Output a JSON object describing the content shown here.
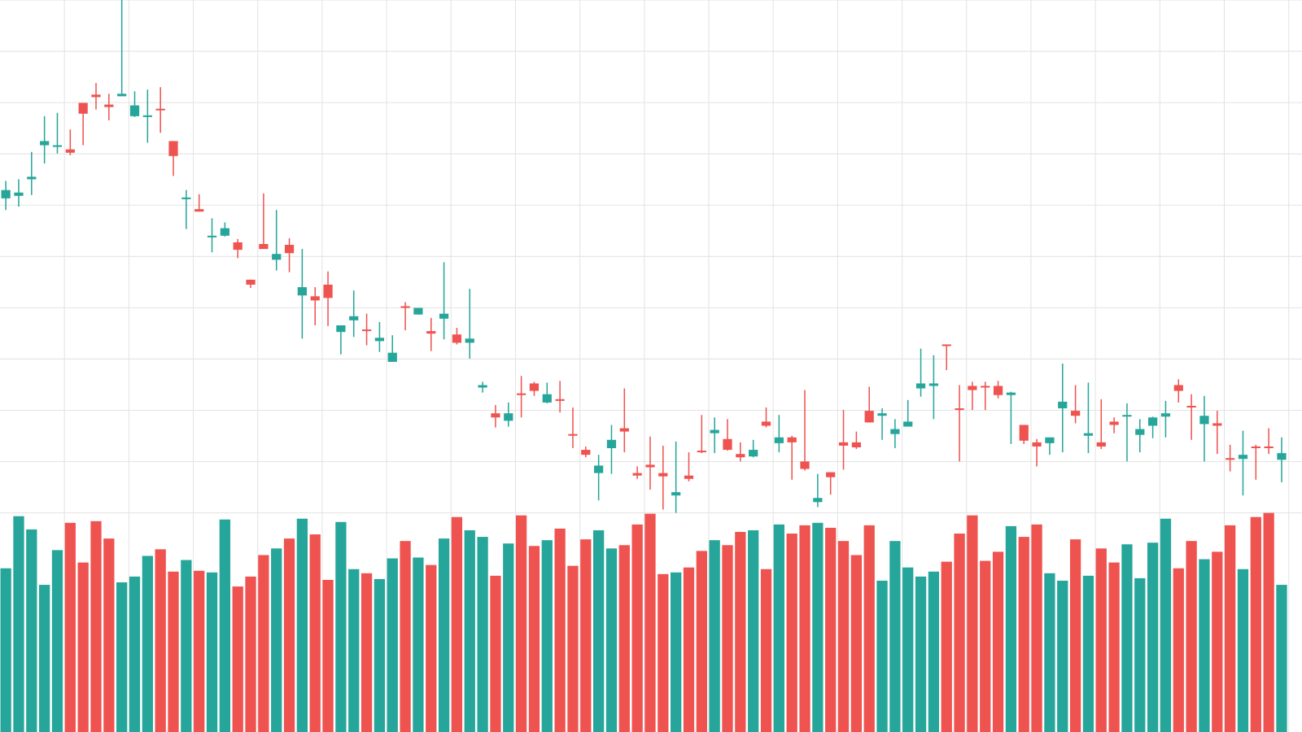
{
  "chart_data": {
    "type": "candlestick",
    "up_color": "#26a69a",
    "down_color": "#ef5350",
    "grid": true,
    "ylim": [
      0,
      618
    ],
    "yticks": [
      0,
      61.8,
      123.6,
      185.4,
      247.2,
      309,
      370.8,
      432.6,
      494.4,
      556.2,
      618
    ],
    "volume_lim": [
      0,
      265
    ],
    "open": [
      379,
      382,
      402,
      443,
      441,
      438,
      494,
      504,
      492,
      502,
      478,
      477,
      487,
      448,
      378,
      366,
      332,
      334,
      326,
      281,
      324,
      305,
      323,
      262,
      261,
      275,
      218,
      232,
      221,
      207,
      182,
      249,
      239,
      219,
      234,
      215,
      205,
      151,
      120,
      111,
      144,
      156,
      133,
      137,
      95,
      76,
      48,
      78,
      102,
      48,
      58,
      48,
      21,
      45,
      75,
      96,
      89,
      71,
      68,
      110,
      84,
      91,
      62,
      13,
      49,
      85,
      85,
      123,
      117,
      95,
      104,
      150,
      153,
      203,
      126,
      153,
      153,
      153,
      142,
      106,
      85,
      84,
      126,
      123,
      93,
      85,
      110,
      116,
      94,
      105,
      116,
      154,
      129,
      107,
      108,
      66,
      65,
      80,
      80,
      64
    ],
    "high": [
      400,
      402,
      435,
      478,
      482,
      462,
      494,
      518,
      505,
      618,
      508,
      510,
      513,
      448,
      389,
      384,
      355,
      350,
      330,
      281,
      385,
      365,
      331,
      318,
      272,
      291,
      226,
      268,
      240,
      230,
      214,
      254,
      247,
      235,
      302,
      223,
      270,
      158,
      130,
      133,
      165,
      158,
      157,
      159,
      127,
      80,
      70,
      106,
      150,
      56,
      92,
      81,
      86,
      73,
      118,
      115,
      113,
      85,
      88,
      127,
      118,
      93,
      148,
      47,
      49,
      124,
      98,
      152,
      126,
      113,
      136,
      198,
      190,
      203,
      154,
      158,
      158,
      159,
      146,
      106,
      89,
      91,
      180,
      154,
      157,
      137,
      115,
      132,
      113,
      116,
      135,
      161,
      143,
      141,
      123,
      82,
      99,
      82,
      102,
      91
    ],
    "low": [
      365,
      369,
      383,
      421,
      433,
      431,
      443,
      486,
      473,
      502,
      477,
      446,
      458,
      406,
      342,
      363,
      314,
      333,
      307,
      271,
      318,
      292,
      290,
      210,
      226,
      225,
      191,
      212,
      202,
      194,
      182,
      220,
      239,
      195,
      209,
      203,
      186,
      145,
      103,
      104,
      115,
      141,
      132,
      121,
      78,
      67,
      15,
      47,
      73,
      41,
      28,
      4,
      0,
      38,
      72,
      72,
      75,
      62,
      67,
      103,
      73,
      40,
      51,
      7,
      22,
      52,
      77,
      109,
      88,
      78,
      104,
      140,
      113,
      172,
      62,
      124,
      124,
      138,
      83,
      83,
      56,
      70,
      73,
      108,
      72,
      77,
      96,
      62,
      73,
      90,
      91,
      133,
      88,
      62,
      71,
      50,
      21,
      40,
      71,
      37
    ],
    "close": [
      389,
      386,
      405,
      448,
      443,
      434,
      481,
      501,
      489,
      505,
      491,
      479,
      485,
      430,
      380,
      363,
      334,
      343,
      317,
      275,
      318,
      312,
      313,
      272,
      256,
      259,
      226,
      237,
      219,
      211,
      193,
      247,
      247,
      216,
      240,
      205,
      210,
      154,
      115,
      120,
      142,
      147,
      143,
      135,
      93,
      70,
      57,
      88,
      98,
      45,
      55,
      44,
      25,
      41,
      73,
      100,
      76,
      67,
      76,
      105,
      91,
      85,
      53,
      18,
      43,
      81,
      79,
      109,
      120,
      101,
      110,
      156,
      156,
      201,
      124,
      148,
      151,
      142,
      145,
      87,
      80,
      91,
      134,
      117,
      96,
      80,
      106,
      118,
      101,
      115,
      120,
      147,
      127,
      117,
      105,
      64,
      70,
      78,
      78,
      72
    ],
    "volume": [
      198,
      261,
      245,
      178,
      220,
      253,
      205,
      255,
      234,
      181,
      188,
      213,
      221,
      194,
      208,
      195,
      193,
      257,
      176,
      188,
      214,
      222,
      234,
      258,
      239,
      184,
      254,
      197,
      192,
      185,
      210,
      231,
      211,
      202,
      234,
      260,
      244,
      236,
      189,
      228,
      262,
      225,
      232,
      246,
      201,
      233,
      244,
      222,
      226,
      251,
      264,
      191,
      193,
      199,
      219,
      232,
      226,
      242,
      244,
      197,
      251,
      240,
      250,
      253,
      247,
      231,
      214,
      250,
      183,
      231,
      199,
      188,
      194,
      206,
      240,
      262,
      207,
      218,
      249,
      236,
      251,
      192,
      183,
      233,
      189,
      222,
      205,
      227,
      186,
      229,
      258,
      198,
      231,
      209,
      218,
      250,
      197,
      260,
      265,
      178
    ]
  }
}
